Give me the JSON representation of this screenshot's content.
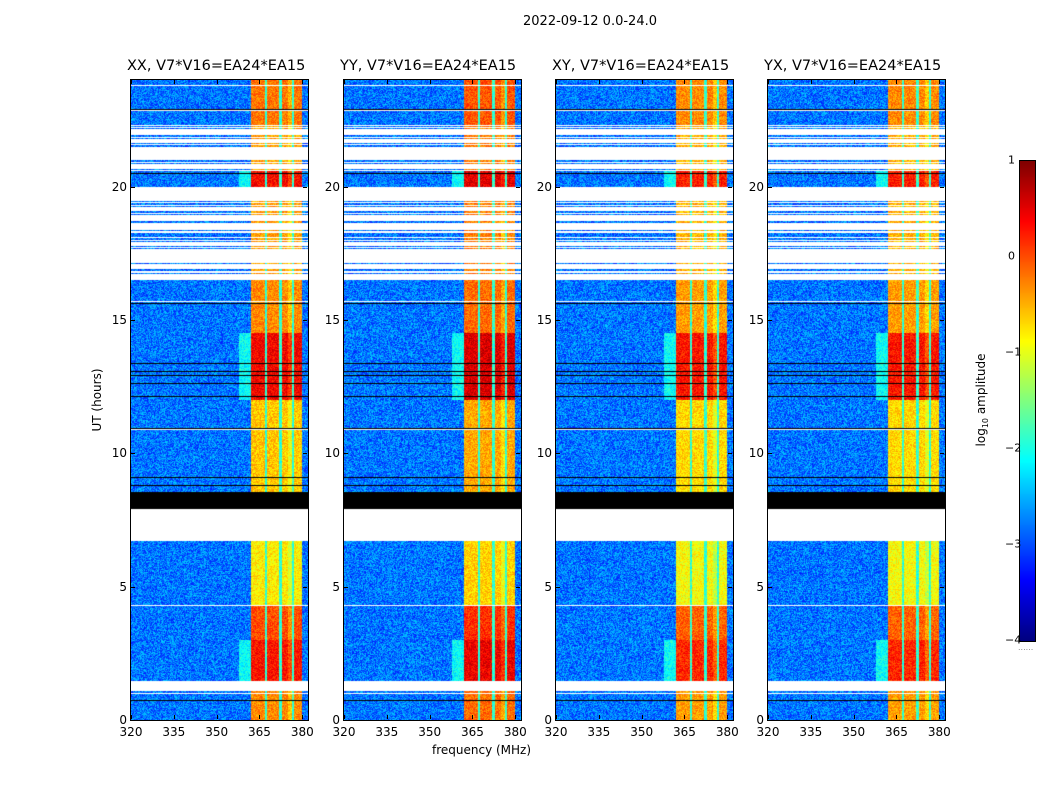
{
  "figure": {
    "suptitle": "2022-09-12 0.0-24.0",
    "xlabel": "frequency (MHz)",
    "ylabel": "UT (hours)",
    "colorbar": {
      "label_prefix": "log",
      "label_sub": "10",
      "label_suffix": " amplitude",
      "ticks": [
        "1",
        "0",
        "−1",
        "−2",
        "−3",
        "−4"
      ],
      "range": [
        -4,
        1
      ],
      "colormap": "jet",
      "extra": "......"
    }
  },
  "chart_data": {
    "type": "heatmap",
    "title": "2022-09-12 0.0-24.0",
    "xlabel": "frequency (MHz)",
    "ylabel": "UT (hours)",
    "xlim": [
      320,
      382
    ],
    "ylim": [
      0,
      24
    ],
    "xticks": [
      "320",
      "335",
      "350",
      "365",
      "380"
    ],
    "yticks": [
      "0",
      "5",
      "10",
      "15",
      "20"
    ],
    "colorbar_label": "log10 amplitude",
    "colorbar_range": [
      -4,
      1
    ],
    "panels": [
      {
        "title": "XX, V7*V16=EA24*EA15",
        "polarization": "XX",
        "baseline": "V7*V16=EA24*EA15"
      },
      {
        "title": "YY, V7*V16=EA24*EA15",
        "polarization": "YY",
        "baseline": "V7*V16=EA24*EA15"
      },
      {
        "title": "XY, V7*V16=EA24*EA15",
        "polarization": "XY",
        "baseline": "V7*V16=EA24*EA15"
      },
      {
        "title": "YX, V7*V16=EA24*EA15",
        "polarization": "YX",
        "baseline": "V7*V16=EA24*EA15"
      }
    ],
    "rfi_band_mhz": [
      362,
      380
    ],
    "rfi_subband_gaps_mhz": [
      367.3,
      372.3,
      376.8
    ],
    "background_level_log10": -2.8,
    "time_profile": [
      {
        "ut": [
          0.0,
          1.1
        ],
        "rfi_level": -0.3
      },
      {
        "ut": [
          1.1,
          1.45
        ],
        "flag": "white"
      },
      {
        "ut": [
          1.45,
          3.0
        ],
        "rfi_level": 0.3
      },
      {
        "ut": [
          3.0,
          4.3
        ],
        "rfi_level": 0.0
      },
      {
        "ut": [
          4.3,
          6.7
        ],
        "rfi_level": -0.8
      },
      {
        "ut": [
          6.7,
          7.9
        ],
        "flag": "white"
      },
      {
        "ut": [
          7.9,
          8.55
        ],
        "flag": "black"
      },
      {
        "ut": [
          8.55,
          12.0
        ],
        "rfi_level": -0.6
      },
      {
        "ut": [
          12.0,
          14.5
        ],
        "rfi_level": 0.4
      },
      {
        "ut": [
          14.5,
          16.5
        ],
        "rfi_level": -0.3
      },
      {
        "ut": [
          16.5,
          20.0
        ],
        "flag": "sparse",
        "rfi_level": -0.4
      },
      {
        "ut": [
          20.0,
          20.6
        ],
        "rfi_level": 0.35
      },
      {
        "ut": [
          20.6,
          22.3
        ],
        "flag": "sparse",
        "rfi_level": -0.4
      },
      {
        "ut": [
          22.3,
          24.0
        ],
        "rfi_level": -0.2
      }
    ]
  }
}
